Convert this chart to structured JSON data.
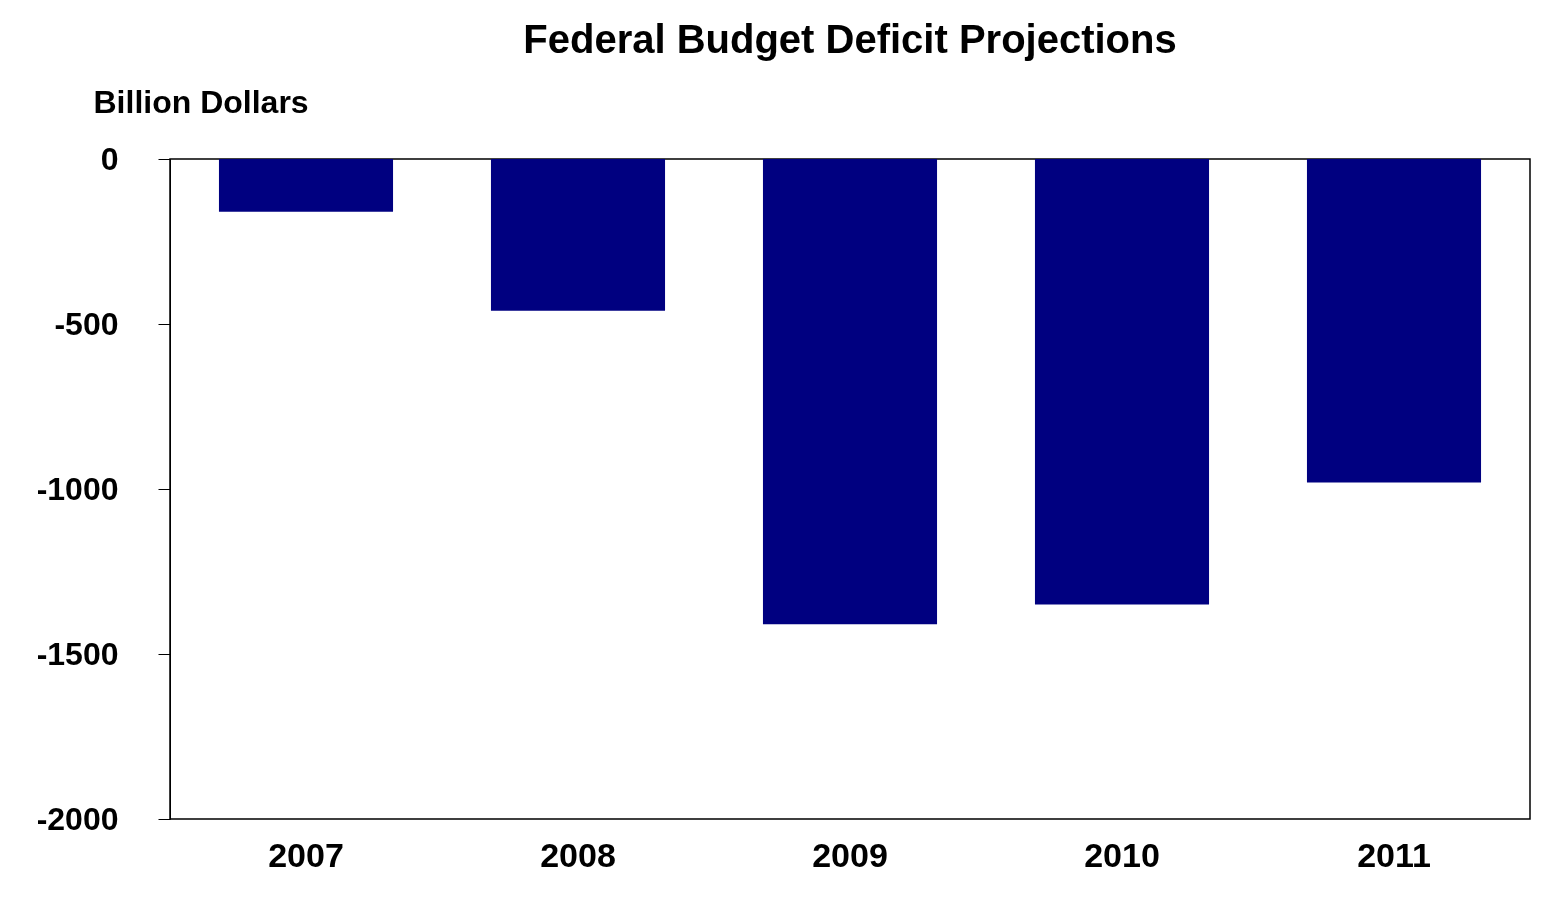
{
  "chart_data": {
    "type": "bar",
    "title": "Federal Budget Deficit Projections",
    "ylabel": "Billion Dollars",
    "categories": [
      "2007",
      "2008",
      "2009",
      "2010",
      "2011"
    ],
    "values": [
      -160,
      -460,
      -1410,
      -1350,
      -980
    ],
    "color": "#000080",
    "ylim": [
      -2000,
      0
    ],
    "yticks": [
      -2000,
      -1500,
      -1000,
      -500,
      0
    ],
    "grid": false
  }
}
